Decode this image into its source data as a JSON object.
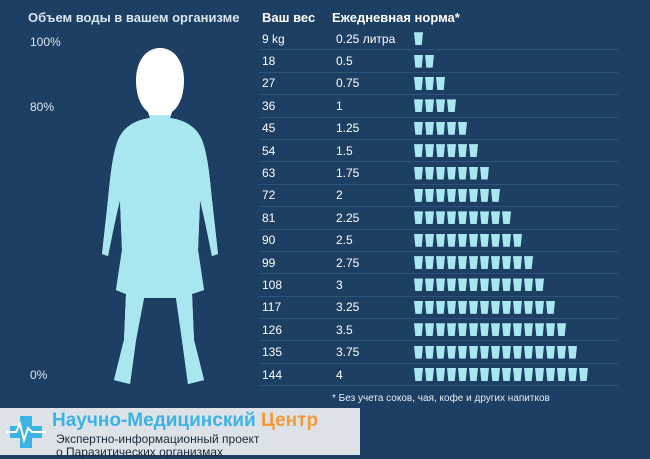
{
  "left_panel": {
    "title": "Объем воды в вашем организме",
    "pct_100": "100%",
    "pct_80": "80%",
    "pct_0": "0%",
    "water_fill_fraction": 0.8
  },
  "table": {
    "header_weight": "Ваш вес",
    "header_norm": "Ежедневная норма*",
    "rows": [
      {
        "weight": "9 kg",
        "liters": "0.25 литра",
        "glasses": 1
      },
      {
        "weight": "18",
        "liters": "0.5",
        "glasses": 2
      },
      {
        "weight": "27",
        "liters": "0.75",
        "glasses": 3
      },
      {
        "weight": "36",
        "liters": "1",
        "glasses": 4
      },
      {
        "weight": "45",
        "liters": "1.25",
        "glasses": 5
      },
      {
        "weight": "54",
        "liters": "1.5",
        "glasses": 6
      },
      {
        "weight": "63",
        "liters": "1.75",
        "glasses": 7
      },
      {
        "weight": "72",
        "liters": "2",
        "glasses": 8
      },
      {
        "weight": "81",
        "liters": "2.25",
        "glasses": 9
      },
      {
        "weight": "90",
        "liters": "2.5",
        "glasses": 10
      },
      {
        "weight": "99",
        "liters": "2.75",
        "glasses": 11
      },
      {
        "weight": "108",
        "liters": "3",
        "glasses": 12
      },
      {
        "weight": "117",
        "liters": "3.25",
        "glasses": 13
      },
      {
        "weight": "126",
        "liters": "3.5",
        "glasses": 14
      },
      {
        "weight": "135",
        "liters": "3.75",
        "glasses": 15
      },
      {
        "weight": "144",
        "liters": "4",
        "glasses": 16
      }
    ]
  },
  "footnote": "* Без учета соков, чая, кофе и других напитков",
  "brand": {
    "name_part1": "Научно-Медицинский",
    "name_part2": "Центр",
    "line1": "Экспертно-информационный проект",
    "line2": "о Паразитических организмах"
  },
  "colors": {
    "background": "#1d3f63",
    "glass": "#a8e7f0",
    "water": "#a8e7f0",
    "brand_blue": "#3db3e3",
    "brand_orange": "#f29a38"
  },
  "icons": {
    "glass": "water-glass-icon",
    "brand": "medical-cross-pulse-icon"
  }
}
